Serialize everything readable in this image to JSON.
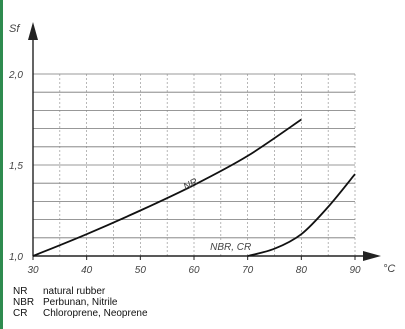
{
  "chart_data": {
    "type": "line",
    "xlabel": "°C",
    "ylabel": "Sf",
    "xlim": [
      30,
      90
    ],
    "ylim": [
      1.0,
      2.0
    ],
    "x_ticks": [
      "30",
      "40",
      "50",
      "60",
      "70",
      "80",
      "90"
    ],
    "y_ticks": [
      {
        "value": 1.0,
        "label": "1,0"
      },
      {
        "value": 1.5,
        "label": "1,5"
      },
      {
        "value": 2.0,
        "label": "2,0"
      }
    ],
    "grid": true,
    "series": [
      {
        "name": "NR",
        "x": [
          30,
          40,
          50,
          60,
          70,
          80
        ],
        "y": [
          1.0,
          1.12,
          1.25,
          1.39,
          1.55,
          1.75
        ]
      },
      {
        "name": "NBR, CR",
        "x": [
          70,
          75,
          80,
          85,
          90
        ],
        "y": [
          1.0,
          1.04,
          1.12,
          1.27,
          1.45
        ]
      }
    ]
  },
  "legend": [
    {
      "abbr": "NR",
      "text": "natural rubber"
    },
    {
      "abbr": "NBR",
      "text": "Perbunan, Nitrile"
    },
    {
      "abbr": "CR",
      "text": "Chloroprene, Neoprene"
    }
  ]
}
